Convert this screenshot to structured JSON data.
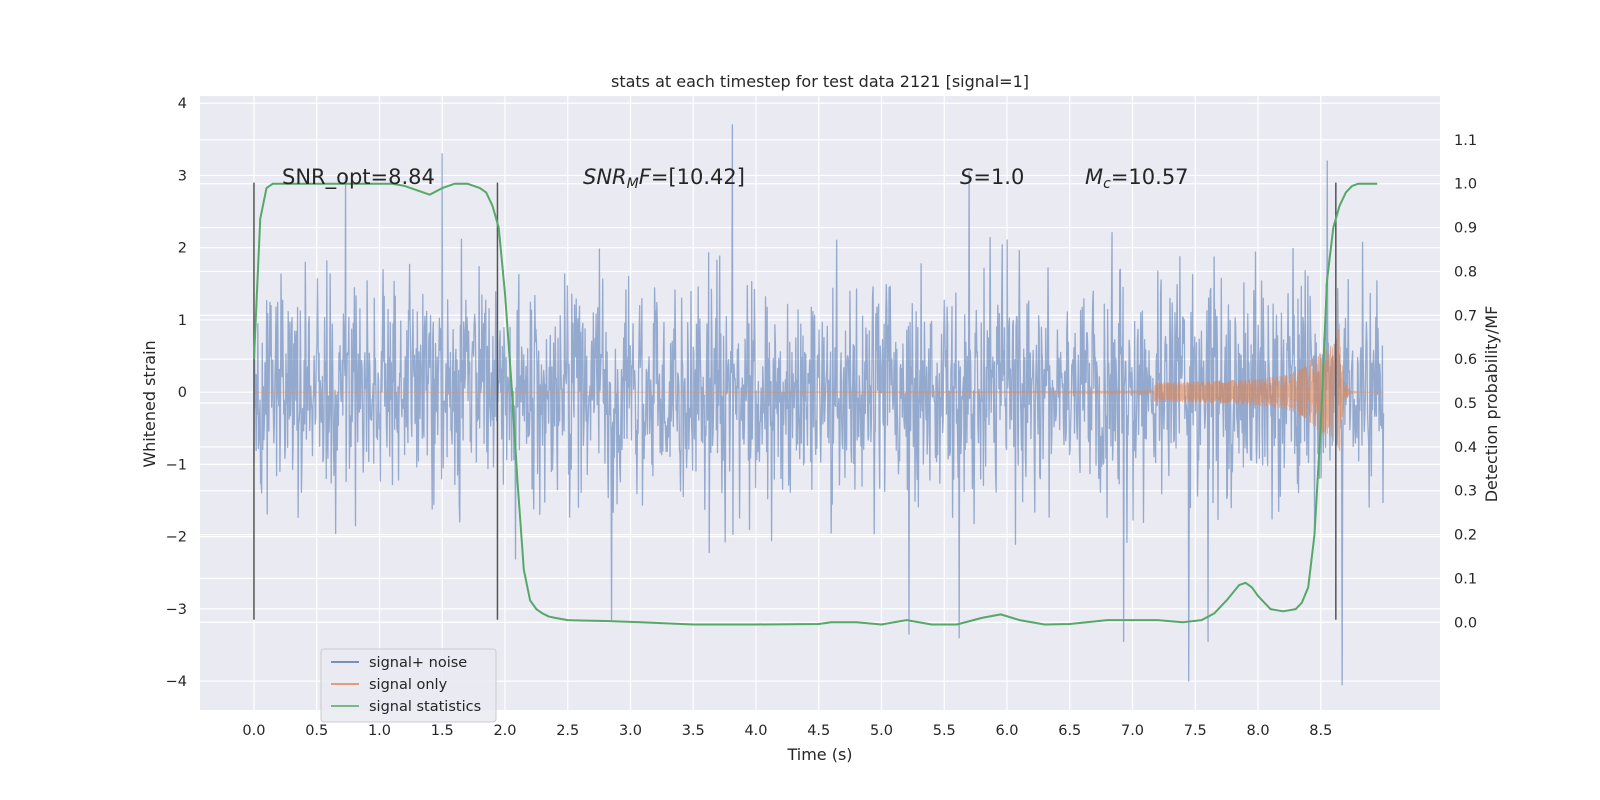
{
  "chart_data": {
    "type": "line",
    "title": "stats at each timestep for test data 2121 [signal=1]",
    "xlabel": "Time (s)",
    "ylabel": "Whitened strain",
    "y2label": "Detection probability/MF",
    "xlim": [
      -0.43,
      9.45
    ],
    "ylim": [
      -4.4,
      4.1
    ],
    "y2lim": [
      -0.2,
      1.2
    ],
    "x_ticks": [
      "0.0",
      "0.5",
      "1.0",
      "1.5",
      "2.0",
      "2.5",
      "3.0",
      "3.5",
      "4.0",
      "4.5",
      "5.0",
      "5.5",
      "6.0",
      "6.5",
      "7.0",
      "7.5",
      "8.0",
      "8.5"
    ],
    "y_ticks": [
      "4",
      "3",
      "2",
      "1",
      "0",
      "−1",
      "−2",
      "−3",
      "−4"
    ],
    "y2_ticks": [
      "1.1",
      "1.0",
      "0.9",
      "0.8",
      "0.7",
      "0.6",
      "0.5",
      "0.4",
      "0.3",
      "0.2",
      "0.1",
      "0.0"
    ],
    "grid": true,
    "legend_position": "lower-left",
    "annotations": [
      {
        "text": "SNR_opt=8.84",
        "x": 0.2,
        "y": 3.0
      },
      {
        "text": "SNR_MF=[10.42]",
        "x": 2.6,
        "y": 3.0
      },
      {
        "text": "S=1.0",
        "x": 5.6,
        "y": 3.0
      },
      {
        "text": "M_c=10.57",
        "x": 6.6,
        "y": 3.0
      }
    ],
    "vertical_markers": [
      0.0,
      1.94,
      8.62
    ],
    "series": [
      {
        "name": "signal+ noise",
        "color": "#4c72b0",
        "axis": "left",
        "kind": "noise",
        "x_range": [
          0.0,
          9.0
        ],
        "sigma": 0.75,
        "peaks_high": [
          [
            1.5,
            3.3
          ],
          [
            3.81,
            3.7
          ],
          [
            8.55,
            3.2
          ],
          [
            5.7,
            3.05
          ],
          [
            0.73,
            3.0
          ]
        ],
        "peaks_low": [
          [
            7.45,
            -4.0
          ],
          [
            8.67,
            -4.05
          ],
          [
            5.62,
            -3.4
          ],
          [
            6.93,
            -3.45
          ],
          [
            7.6,
            -3.45
          ],
          [
            5.22,
            -3.35
          ],
          [
            2.85,
            -3.15
          ]
        ]
      },
      {
        "name": "signal only",
        "color": "#dd8452",
        "axis": "left",
        "kind": "chirp",
        "x_range": [
          0.0,
          9.0
        ],
        "merger_time": 8.65,
        "peak_amplitude": 0.95
      },
      {
        "name": "signal statistics",
        "color": "#55a868",
        "axis": "right",
        "x": [
          0.0,
          0.05,
          0.1,
          0.15,
          0.25,
          0.4,
          0.6,
          0.8,
          1.0,
          1.1,
          1.2,
          1.3,
          1.4,
          1.5,
          1.6,
          1.7,
          1.8,
          1.85,
          1.9,
          1.95,
          2.0,
          2.05,
          2.1,
          2.15,
          2.2,
          2.25,
          2.3,
          2.35,
          2.4,
          2.5,
          2.6,
          2.8,
          3.0,
          3.5,
          4.0,
          4.5,
          4.6,
          4.8,
          5.0,
          5.2,
          5.4,
          5.6,
          5.8,
          5.95,
          6.1,
          6.3,
          6.5,
          6.8,
          7.0,
          7.2,
          7.4,
          7.55,
          7.65,
          7.75,
          7.85,
          7.9,
          7.95,
          8.0,
          8.05,
          8.1,
          8.2,
          8.3,
          8.35,
          8.4,
          8.45,
          8.5,
          8.55,
          8.6,
          8.65,
          8.7,
          8.75,
          8.8,
          8.9,
          8.95
        ],
        "y": [
          0.6,
          0.92,
          0.99,
          1.0,
          1.0,
          1.0,
          1.0,
          1.0,
          1.0,
          1.0,
          0.995,
          0.985,
          0.975,
          0.99,
          1.0,
          1.0,
          0.99,
          0.98,
          0.95,
          0.9,
          0.75,
          0.55,
          0.32,
          0.12,
          0.05,
          0.03,
          0.02,
          0.013,
          0.01,
          0.005,
          0.004,
          0.003,
          0.001,
          -0.005,
          -0.005,
          -0.004,
          0.0,
          0.0,
          -0.005,
          0.005,
          -0.005,
          -0.005,
          0.01,
          0.018,
          0.005,
          -0.005,
          -0.004,
          0.005,
          0.005,
          0.005,
          0.0,
          0.005,
          0.02,
          0.05,
          0.085,
          0.09,
          0.08,
          0.06,
          0.045,
          0.03,
          0.025,
          0.03,
          0.045,
          0.08,
          0.2,
          0.45,
          0.78,
          0.9,
          0.95,
          0.98,
          0.995,
          1.0,
          1.0,
          1.0
        ]
      }
    ]
  }
}
